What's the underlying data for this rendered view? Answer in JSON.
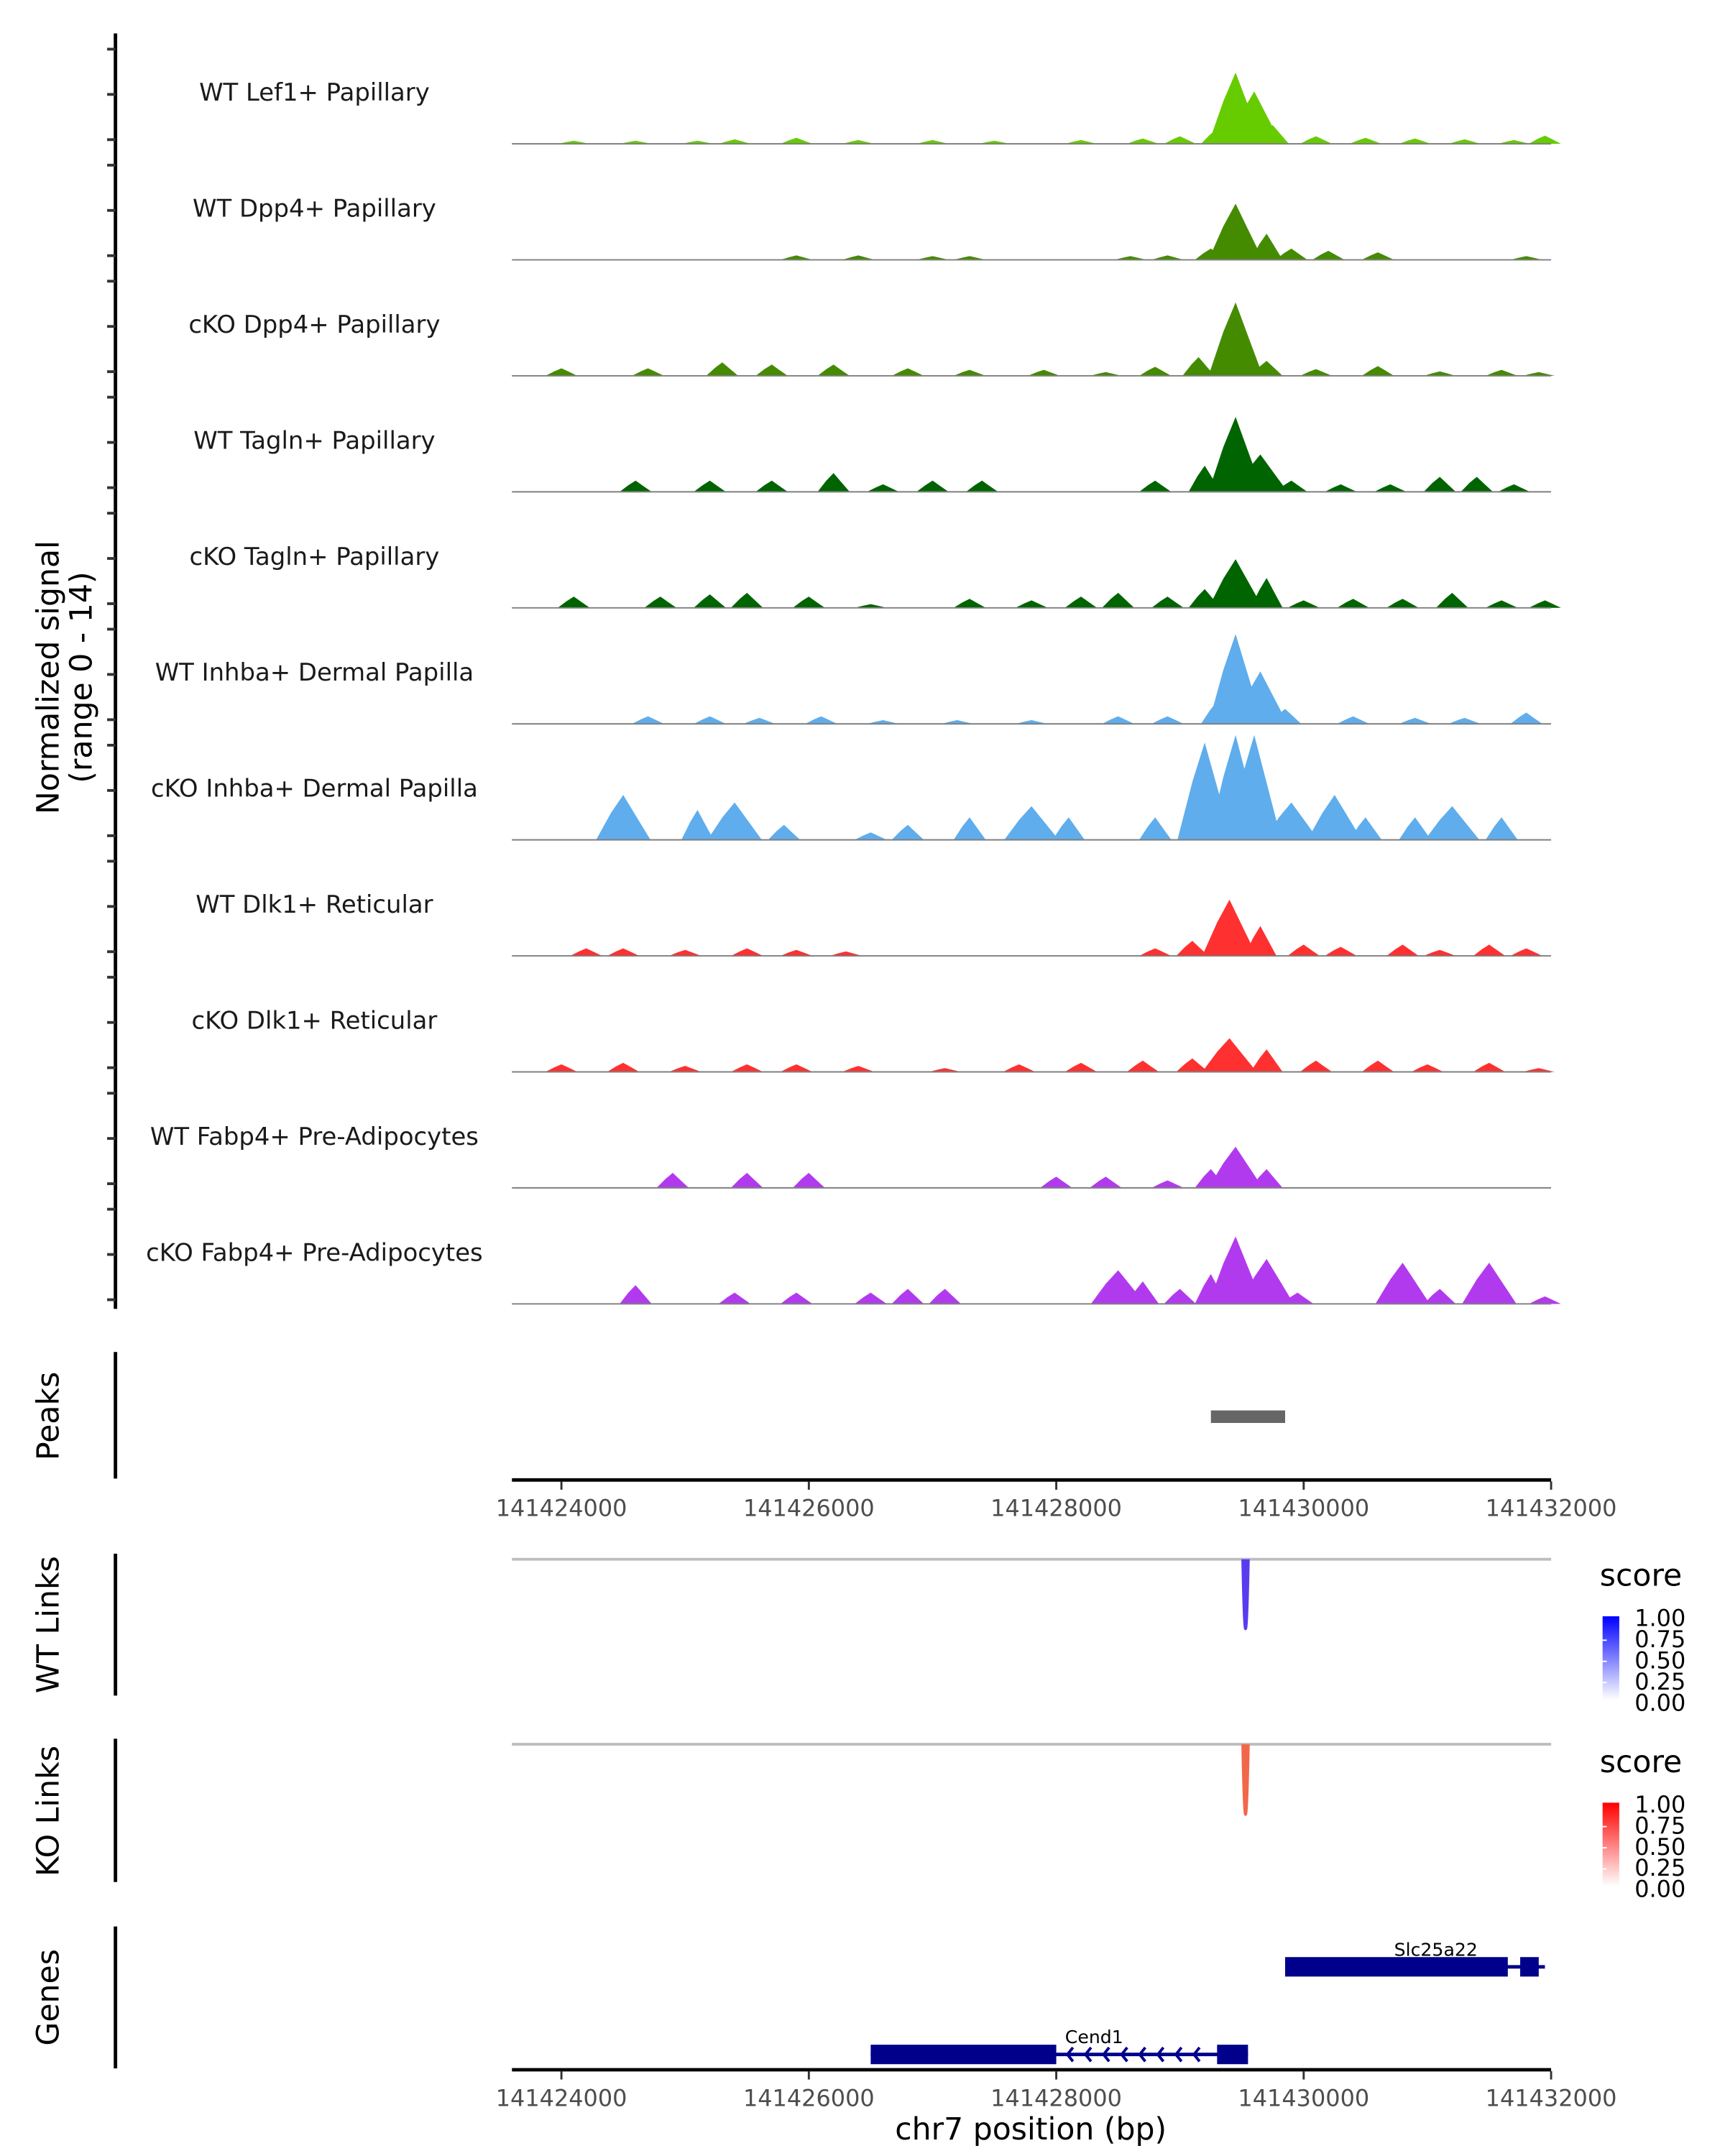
{
  "chart_data": {
    "type": "area",
    "title": "",
    "xlabel": "chr7 position (bp)",
    "ylabel": "Normalized signal\n(range 0 - 14)",
    "ylabel_lines": [
      "Normalized signal",
      "(range 0 - 14)"
    ],
    "xlim": [
      141423600,
      141432000
    ],
    "ylim": [
      0,
      14
    ],
    "x_ticks": [
      141424000,
      141426000,
      141428000,
      141430000,
      141432000
    ],
    "x_tick_labels": [
      "141424000",
      "141426000",
      "141428000",
      "141430000",
      "141432000"
    ],
    "series": [
      {
        "name": "WT Lef1+ Papillary",
        "color": "#66cc00",
        "peaks": [
          [
            141424100,
            0.4
          ],
          [
            141424600,
            0.4
          ],
          [
            141425100,
            0.4
          ],
          [
            141425400,
            0.6
          ],
          [
            141425900,
            0.8
          ],
          [
            141426400,
            0.5
          ],
          [
            141427000,
            0.5
          ],
          [
            141427500,
            0.4
          ],
          [
            141428200,
            0.5
          ],
          [
            141428700,
            0.7
          ],
          [
            141429000,
            1.0
          ],
          [
            141429300,
            2.0
          ],
          [
            141429450,
            9.5
          ],
          [
            141429600,
            7.0
          ],
          [
            141429750,
            2.5
          ],
          [
            141430100,
            1.0
          ],
          [
            141430500,
            0.8
          ],
          [
            141430900,
            0.7
          ],
          [
            141431300,
            0.6
          ],
          [
            141431700,
            0.5
          ],
          [
            141431950,
            1.1
          ]
        ]
      },
      {
        "name": "WT Dpp4+ Papillary",
        "color": "#458b00",
        "peaks": [
          [
            141425900,
            0.6
          ],
          [
            141426400,
            0.6
          ],
          [
            141427000,
            0.5
          ],
          [
            141427300,
            0.5
          ],
          [
            141428600,
            0.5
          ],
          [
            141428900,
            0.6
          ],
          [
            141429250,
            1.5
          ],
          [
            141429450,
            7.5
          ],
          [
            141429700,
            3.5
          ],
          [
            141429900,
            1.5
          ],
          [
            141430200,
            1.2
          ],
          [
            141430600,
            1.0
          ],
          [
            141431800,
            0.5
          ]
        ]
      },
      {
        "name": "cKO Dpp4+ Papillary",
        "color": "#458b00",
        "peaks": [
          [
            141424000,
            1.0
          ],
          [
            141424700,
            1.0
          ],
          [
            141425300,
            1.8
          ],
          [
            141425700,
            1.5
          ],
          [
            141426200,
            1.5
          ],
          [
            141426800,
            1.0
          ],
          [
            141427300,
            0.8
          ],
          [
            141427900,
            0.8
          ],
          [
            141428400,
            0.5
          ],
          [
            141428800,
            1.2
          ],
          [
            141429150,
            2.5
          ],
          [
            141429450,
            9.8
          ],
          [
            141429700,
            2.0
          ],
          [
            141430100,
            0.9
          ],
          [
            141430600,
            1.3
          ],
          [
            141431100,
            0.6
          ],
          [
            141431600,
            0.8
          ],
          [
            141431900,
            0.5
          ]
        ]
      },
      {
        "name": "WT Tagln+ Papillary",
        "color": "#006400",
        "peaks": [
          [
            141424600,
            1.5
          ],
          [
            141425200,
            1.5
          ],
          [
            141425700,
            1.5
          ],
          [
            141426200,
            2.5
          ],
          [
            141426600,
            1.0
          ],
          [
            141427000,
            1.5
          ],
          [
            141427400,
            1.5
          ],
          [
            141428800,
            1.5
          ],
          [
            141429200,
            3.5
          ],
          [
            141429450,
            10.0
          ],
          [
            141429650,
            5.0
          ],
          [
            141429900,
            1.5
          ],
          [
            141430300,
            1.0
          ],
          [
            141430700,
            1.0
          ],
          [
            141431100,
            2.0
          ],
          [
            141431400,
            2.0
          ],
          [
            141431700,
            1.0
          ]
        ]
      },
      {
        "name": "cKO Tagln+ Papillary",
        "color": "#006400",
        "peaks": [
          [
            141424100,
            1.5
          ],
          [
            141424800,
            1.5
          ],
          [
            141425200,
            1.8
          ],
          [
            141425500,
            2.0
          ],
          [
            141426000,
            1.5
          ],
          [
            141426500,
            0.5
          ],
          [
            141427300,
            1.2
          ],
          [
            141427800,
            1.0
          ],
          [
            141428200,
            1.5
          ],
          [
            141428500,
            2.0
          ],
          [
            141428900,
            1.5
          ],
          [
            141429200,
            2.5
          ],
          [
            141429450,
            6.5
          ],
          [
            141429700,
            4.0
          ],
          [
            141430000,
            1.0
          ],
          [
            141430400,
            1.2
          ],
          [
            141430800,
            1.2
          ],
          [
            141431200,
            2.0
          ],
          [
            141431600,
            1.0
          ],
          [
            141431950,
            1.0
          ]
        ]
      },
      {
        "name": "WT Inhba+ Dermal Papilla",
        "color": "#5fadec",
        "peaks": [
          [
            141424700,
            1.0
          ],
          [
            141425200,
            1.0
          ],
          [
            141425600,
            0.8
          ],
          [
            141426100,
            1.0
          ],
          [
            141426600,
            0.5
          ],
          [
            141427200,
            0.5
          ],
          [
            141427800,
            0.5
          ],
          [
            141428500,
            1.0
          ],
          [
            141428900,
            1.0
          ],
          [
            141429300,
            3.0
          ],
          [
            141429450,
            12.0
          ],
          [
            141429650,
            7.0
          ],
          [
            141429850,
            2.0
          ],
          [
            141430400,
            1.0
          ],
          [
            141430900,
            0.8
          ],
          [
            141431300,
            0.8
          ],
          [
            141431800,
            1.5
          ]
        ]
      },
      {
        "name": "cKO Inhba+ Dermal Papilla",
        "color": "#5fadec",
        "peaks": [
          [
            141424500,
            6.0
          ],
          [
            141425100,
            4.0
          ],
          [
            141425400,
            5.0
          ],
          [
            141425800,
            2.0
          ],
          [
            141426500,
            1.0
          ],
          [
            141426800,
            2.0
          ],
          [
            141427300,
            3.0
          ],
          [
            141427800,
            4.5
          ],
          [
            141428100,
            3.0
          ],
          [
            141428800,
            3.0
          ],
          [
            141429200,
            13.0
          ],
          [
            141429450,
            15.0
          ],
          [
            141429600,
            14.0
          ],
          [
            141429900,
            5.0
          ],
          [
            141430250,
            6.0
          ],
          [
            141430500,
            3.0
          ],
          [
            141430900,
            3.0
          ],
          [
            141431200,
            4.5
          ],
          [
            141431600,
            3.0
          ]
        ]
      },
      {
        "name": "WT Dlk1+ Reticular",
        "color": "#ff3030",
        "peaks": [
          [
            141424200,
            1.0
          ],
          [
            141424500,
            1.0
          ],
          [
            141425000,
            0.8
          ],
          [
            141425500,
            1.0
          ],
          [
            141425900,
            0.8
          ],
          [
            141426300,
            0.6
          ],
          [
            141428800,
            1.0
          ],
          [
            141429100,
            2.0
          ],
          [
            141429400,
            7.5
          ],
          [
            141429650,
            4.0
          ],
          [
            141430000,
            1.5
          ],
          [
            141430300,
            1.2
          ],
          [
            141430800,
            1.5
          ],
          [
            141431100,
            0.8
          ],
          [
            141431500,
            1.5
          ],
          [
            141431800,
            1.0
          ]
        ]
      },
      {
        "name": "cKO Dlk1+ Reticular",
        "color": "#ff3030",
        "peaks": [
          [
            141424000,
            1.0
          ],
          [
            141424500,
            1.2
          ],
          [
            141425000,
            0.8
          ],
          [
            141425500,
            1.0
          ],
          [
            141425900,
            1.0
          ],
          [
            141426400,
            0.8
          ],
          [
            141427100,
            0.5
          ],
          [
            141427700,
            1.0
          ],
          [
            141428200,
            1.2
          ],
          [
            141428700,
            1.5
          ],
          [
            141429100,
            1.8
          ],
          [
            141429400,
            4.5
          ],
          [
            141429700,
            3.0
          ],
          [
            141430100,
            1.5
          ],
          [
            141430600,
            1.5
          ],
          [
            141431000,
            1.0
          ],
          [
            141431500,
            1.2
          ],
          [
            141431900,
            0.5
          ]
        ]
      },
      {
        "name": "WT Fabp4+ Pre-Adipocytes",
        "color": "#b23aee",
        "peaks": [
          [
            141424900,
            2.0
          ],
          [
            141425500,
            2.0
          ],
          [
            141426000,
            2.0
          ],
          [
            141428000,
            1.5
          ],
          [
            141428400,
            1.5
          ],
          [
            141428900,
            1.0
          ],
          [
            141429250,
            2.5
          ],
          [
            141429450,
            5.5
          ],
          [
            141429700,
            2.5
          ]
        ]
      },
      {
        "name": "cKO Fabp4+ Pre-Adipocytes",
        "color": "#b23aee",
        "peaks": [
          [
            141424600,
            2.5
          ],
          [
            141425400,
            1.5
          ],
          [
            141425900,
            1.5
          ],
          [
            141426500,
            1.5
          ],
          [
            141426800,
            2.0
          ],
          [
            141427100,
            2.0
          ],
          [
            141428500,
            4.5
          ],
          [
            141428700,
            3.0
          ],
          [
            141429000,
            2.0
          ],
          [
            141429250,
            4.0
          ],
          [
            141429450,
            9.0
          ],
          [
            141429700,
            6.0
          ],
          [
            141429950,
            1.5
          ],
          [
            141430800,
            5.5
          ],
          [
            141431100,
            2.0
          ],
          [
            141431500,
            5.5
          ],
          [
            141431950,
            1.0
          ]
        ]
      }
    ],
    "peaks_track": {
      "label": "Peaks",
      "color": "#666666",
      "regions": [
        [
          141429250,
          141429850
        ]
      ]
    },
    "links_tracks": [
      {
        "label": "WT Links",
        "color": "#5b3bf0",
        "links": [
          {
            "start": 141429520,
            "end": 141429540,
            "score": 0.8
          }
        ],
        "legend": {
          "title": "score",
          "ticks": [
            "1.00",
            "0.75",
            "0.50",
            "0.25",
            "0.00"
          ],
          "low": "#ffffff",
          "high": "#0000ff"
        }
      },
      {
        "label": "KO Links",
        "color": "#f2674a",
        "links": [
          {
            "start": 141429520,
            "end": 141429540,
            "score": 0.7
          }
        ],
        "legend": {
          "title": "score",
          "ticks": [
            "1.00",
            "0.75",
            "0.50",
            "0.25",
            "0.00"
          ],
          "low": "#ffffff",
          "high": "#ff0000"
        }
      }
    ],
    "genes_track": {
      "label": "Genes",
      "color": "#00008b",
      "genes": [
        {
          "name": "Slc25a22",
          "strand": "-",
          "start": 141429850,
          "end": 141431950,
          "exons": [
            [
              141429850,
              141431650
            ],
            [
              141431750,
              141431900
            ]
          ]
        },
        {
          "name": "Cend1",
          "strand": "-",
          "start": 141426500,
          "end": 141429550,
          "exons": [
            [
              141426500,
              141428000
            ],
            [
              141429300,
              141429550
            ]
          ]
        }
      ]
    },
    "grid": false
  }
}
